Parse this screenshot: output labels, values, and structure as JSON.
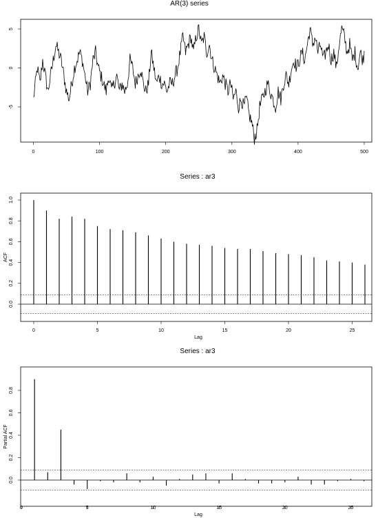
{
  "chart_data": [
    {
      "type": "line",
      "title": "AR(3) series",
      "xlabel": "",
      "ylabel": "",
      "xlim": [
        0,
        500
      ],
      "ylim": [
        -10,
        7
      ],
      "xticks": [
        0,
        100,
        200,
        300,
        400,
        500
      ],
      "xtick_labels": [
        "0",
        "100",
        "200",
        "300",
        "400",
        "500"
      ],
      "yticks": [
        5,
        0,
        -5
      ],
      "ytick_labels": [
        "5",
        "0",
        "-5"
      ],
      "grid": false,
      "legend": "none",
      "anchors": [
        [
          0,
          -4
        ],
        [
          3,
          -2
        ],
        [
          6,
          0
        ],
        [
          10,
          -2
        ],
        [
          14,
          1
        ],
        [
          18,
          -1
        ],
        [
          22,
          -3
        ],
        [
          26,
          -1
        ],
        [
          30,
          1
        ],
        [
          34,
          3
        ],
        [
          38,
          2
        ],
        [
          42,
          1
        ],
        [
          46,
          -1
        ],
        [
          50,
          -3
        ],
        [
          54,
          -4
        ],
        [
          58,
          -2
        ],
        [
          62,
          0
        ],
        [
          66,
          1
        ],
        [
          70,
          2
        ],
        [
          74,
          1
        ],
        [
          78,
          -1
        ],
        [
          82,
          -3
        ],
        [
          86,
          -2
        ],
        [
          90,
          1
        ],
        [
          94,
          2
        ],
        [
          98,
          0
        ],
        [
          102,
          -1
        ],
        [
          106,
          -2
        ],
        [
          110,
          -3
        ],
        [
          114,
          -1
        ],
        [
          118,
          -3
        ],
        [
          122,
          -2
        ],
        [
          126,
          -1
        ],
        [
          130,
          -3
        ],
        [
          134,
          -2
        ],
        [
          138,
          -3
        ],
        [
          142,
          -2
        ],
        [
          146,
          1
        ],
        [
          150,
          0
        ],
        [
          154,
          -2
        ],
        [
          158,
          -1
        ],
        [
          162,
          0
        ],
        [
          166,
          -2
        ],
        [
          170,
          -3
        ],
        [
          174,
          -2
        ],
        [
          178,
          2
        ],
        [
          182,
          0
        ],
        [
          186,
          -2
        ],
        [
          190,
          -1
        ],
        [
          194,
          -2
        ],
        [
          198,
          -2
        ],
        [
          202,
          -3
        ],
        [
          206,
          -2
        ],
        [
          210,
          -2
        ],
        [
          214,
          -1
        ],
        [
          218,
          0
        ],
        [
          222,
          2
        ],
        [
          226,
          4
        ],
        [
          230,
          2
        ],
        [
          234,
          3
        ],
        [
          238,
          4
        ],
        [
          242,
          2
        ],
        [
          246,
          4
        ],
        [
          250,
          5
        ],
        [
          254,
          3
        ],
        [
          258,
          4
        ],
        [
          262,
          2
        ],
        [
          266,
          3
        ],
        [
          270,
          1
        ],
        [
          274,
          0
        ],
        [
          278,
          -1
        ],
        [
          282,
          -2
        ],
        [
          286,
          -1
        ],
        [
          290,
          -2
        ],
        [
          294,
          -3
        ],
        [
          298,
          -2
        ],
        [
          302,
          -4
        ],
        [
          306,
          -3
        ],
        [
          310,
          -5
        ],
        [
          314,
          -4
        ],
        [
          318,
          -5
        ],
        [
          322,
          -4
        ],
        [
          326,
          -6
        ],
        [
          330,
          -7
        ],
        [
          334,
          -9
        ],
        [
          338,
          -8
        ],
        [
          342,
          -5
        ],
        [
          346,
          -4
        ],
        [
          350,
          -3
        ],
        [
          354,
          -2
        ],
        [
          358,
          -3
        ],
        [
          362,
          -4
        ],
        [
          366,
          -5
        ],
        [
          370,
          -3
        ],
        [
          374,
          -4
        ],
        [
          378,
          -2
        ],
        [
          382,
          -1
        ],
        [
          386,
          -2
        ],
        [
          390,
          0
        ],
        [
          394,
          1
        ],
        [
          398,
          0
        ],
        [
          402,
          1
        ],
        [
          406,
          2
        ],
        [
          410,
          1
        ],
        [
          414,
          3
        ],
        [
          418,
          5
        ],
        [
          422,
          3
        ],
        [
          426,
          4
        ],
        [
          430,
          2
        ],
        [
          434,
          3
        ],
        [
          438,
          1
        ],
        [
          442,
          2
        ],
        [
          446,
          3
        ],
        [
          450,
          1
        ],
        [
          454,
          2
        ],
        [
          458,
          0
        ],
        [
          462,
          3
        ],
        [
          466,
          5
        ],
        [
          470,
          4
        ],
        [
          474,
          2
        ],
        [
          478,
          3
        ],
        [
          482,
          1
        ],
        [
          486,
          2
        ],
        [
          490,
          0
        ],
        [
          494,
          2
        ],
        [
          498,
          1
        ],
        [
          500,
          2
        ]
      ]
    },
    {
      "type": "bar",
      "title": "Series : ar3",
      "xlabel": "Lag",
      "ylabel": "ACF",
      "xlim": [
        0,
        26
      ],
      "ylim": [
        -0.15,
        1.05
      ],
      "xticks": [
        0,
        5,
        10,
        15,
        20,
        25
      ],
      "xtick_labels": [
        "0",
        "5",
        "10",
        "15",
        "20",
        "25"
      ],
      "yticks": [
        0.0,
        0.2,
        0.4,
        0.6,
        0.8,
        1.0
      ],
      "ytick_labels": [
        "0.0",
        "0.2",
        "0.4",
        "0.6",
        "0.8",
        "1.0"
      ],
      "conf_limit": 0.09,
      "lags": [
        0,
        1,
        2,
        3,
        4,
        5,
        6,
        7,
        8,
        9,
        10,
        11,
        12,
        13,
        14,
        15,
        16,
        17,
        18,
        19,
        20,
        21,
        22,
        23,
        24,
        25,
        26
      ],
      "values": [
        1.0,
        0.9,
        0.82,
        0.84,
        0.82,
        0.75,
        0.72,
        0.71,
        0.69,
        0.66,
        0.63,
        0.6,
        0.58,
        0.57,
        0.56,
        0.54,
        0.53,
        0.53,
        0.51,
        0.49,
        0.48,
        0.47,
        0.45,
        0.42,
        0.41,
        0.4,
        0.38
      ],
      "grid": false,
      "legend": "none"
    },
    {
      "type": "bar",
      "title": "Series : ar3",
      "xlabel": "Lag",
      "ylabel": "Partial ACF",
      "xlim": [
        0,
        26
      ],
      "ylim": [
        -0.12,
        0.94
      ],
      "xticks": [
        0,
        5,
        10,
        15,
        20,
        25
      ],
      "xtick_labels": [
        "0",
        "5",
        "10",
        "15",
        "20",
        "25"
      ],
      "yticks": [
        0.0,
        0.2,
        0.4,
        0.6,
        0.8
      ],
      "ytick_labels": [
        "0.0",
        "0.2",
        "0.4",
        "0.6",
        "0.8"
      ],
      "conf_limit": 0.09,
      "lags": [
        1,
        2,
        3,
        4,
        5,
        6,
        7,
        8,
        9,
        10,
        11,
        12,
        13,
        14,
        15,
        16,
        17,
        18,
        19,
        20,
        21,
        22,
        23,
        24,
        25,
        26
      ],
      "values": [
        0.9,
        0.07,
        0.45,
        -0.04,
        -0.08,
        -0.01,
        -0.02,
        0.06,
        -0.02,
        0.03,
        -0.05,
        0.01,
        0.05,
        0.06,
        -0.03,
        0.06,
        0.01,
        -0.03,
        -0.03,
        -0.02,
        0.03,
        -0.04,
        -0.04,
        -0.01,
        0.01,
        -0.01
      ],
      "grid": false,
      "legend": "none"
    }
  ]
}
